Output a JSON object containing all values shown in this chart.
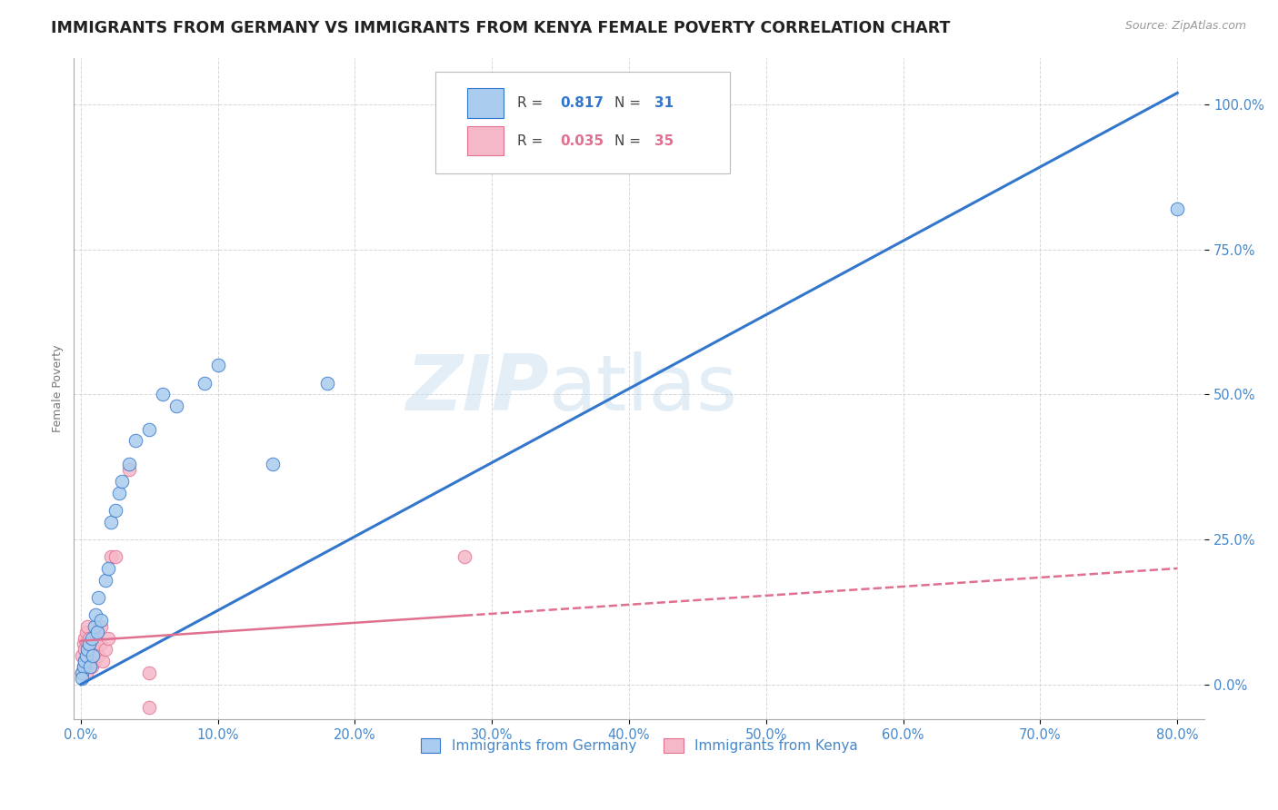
{
  "title": "IMMIGRANTS FROM GERMANY VS IMMIGRANTS FROM KENYA FEMALE POVERTY CORRELATION CHART",
  "source": "Source: ZipAtlas.com",
  "ylabel": "Female Poverty",
  "watermark_zip": "ZIP",
  "watermark_atlas": "atlas",
  "legend_germany": "Immigrants from Germany",
  "legend_kenya": "Immigrants from Kenya",
  "r_germany": 0.817,
  "n_germany": 31,
  "r_kenya": 0.035,
  "n_kenya": 35,
  "xlim": [
    -0.005,
    0.82
  ],
  "ylim": [
    -0.06,
    1.08
  ],
  "xticks": [
    0.0,
    0.1,
    0.2,
    0.3,
    0.4,
    0.5,
    0.6,
    0.7,
    0.8
  ],
  "yticks": [
    0.0,
    0.25,
    0.5,
    0.75,
    1.0
  ],
  "color_germany": "#aaccee",
  "color_kenya": "#f5b8c8",
  "line_color_germany": "#3377cc",
  "line_color_kenya": "#e07090",
  "tick_color": "#4488cc",
  "background_color": "#ffffff",
  "title_fontsize": 12.5,
  "axis_label_fontsize": 9,
  "tick_fontsize": 10.5,
  "germany_x": [
    0.001,
    0.002,
    0.003,
    0.004,
    0.005,
    0.006,
    0.007,
    0.008,
    0.009,
    0.01,
    0.011,
    0.012,
    0.013,
    0.015,
    0.018,
    0.02,
    0.022,
    0.025,
    0.028,
    0.03,
    0.035,
    0.04,
    0.05,
    0.06,
    0.07,
    0.09,
    0.1,
    0.14,
    0.18,
    0.8,
    0.001
  ],
  "germany_y": [
    0.02,
    0.03,
    0.04,
    0.05,
    0.06,
    0.07,
    0.03,
    0.08,
    0.05,
    0.1,
    0.12,
    0.09,
    0.15,
    0.11,
    0.18,
    0.2,
    0.28,
    0.3,
    0.33,
    0.35,
    0.38,
    0.42,
    0.44,
    0.5,
    0.48,
    0.52,
    0.55,
    0.38,
    0.52,
    0.82,
    0.01
  ],
  "kenya_x": [
    0.001,
    0.001,
    0.002,
    0.002,
    0.003,
    0.003,
    0.003,
    0.004,
    0.004,
    0.005,
    0.005,
    0.005,
    0.006,
    0.006,
    0.007,
    0.007,
    0.008,
    0.008,
    0.009,
    0.01,
    0.01,
    0.011,
    0.012,
    0.013,
    0.014,
    0.015,
    0.016,
    0.018,
    0.02,
    0.022,
    0.025,
    0.035,
    0.05,
    0.28,
    0.05
  ],
  "kenya_y": [
    0.02,
    0.05,
    0.03,
    0.07,
    0.04,
    0.06,
    0.08,
    0.02,
    0.09,
    0.03,
    0.07,
    0.1,
    0.05,
    0.08,
    0.04,
    0.06,
    0.03,
    0.07,
    0.05,
    0.04,
    0.08,
    0.06,
    0.09,
    0.05,
    0.07,
    0.1,
    0.04,
    0.06,
    0.08,
    0.22,
    0.22,
    0.37,
    0.02,
    0.22,
    -0.04
  ],
  "line_g_x0": 0.0,
  "line_g_y0": 0.0,
  "line_g_x1": 0.8,
  "line_g_y1": 1.02,
  "line_k_x0": 0.0,
  "line_k_y0": 0.075,
  "line_k_x1": 0.8,
  "line_k_y1": 0.2,
  "line_k_solid_x1": 0.28
}
